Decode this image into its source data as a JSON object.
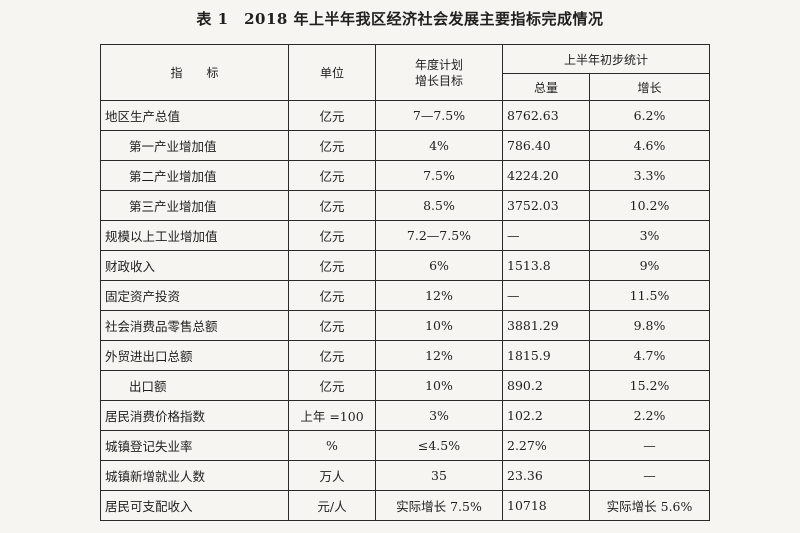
{
  "title": "表 1　2018 年上半年我区经济社会发展主要指标完成情况",
  "headers": {
    "indicator": "指　　标",
    "unit": "单位",
    "target_line1": "年度计划",
    "target_line2": "增长目标",
    "prelim": "上半年初步统计",
    "total": "总量",
    "growth": "增长"
  },
  "rows": [
    {
      "name": "地区生产总值",
      "unit": "亿元",
      "target": "7—7.5%",
      "total": "8762.63",
      "growth": "6.2%",
      "sub": false
    },
    {
      "name": "第一产业增加值",
      "unit": "亿元",
      "target": "4%",
      "total": "786.40",
      "growth": "4.6%",
      "sub": true
    },
    {
      "name": "第二产业增加值",
      "unit": "亿元",
      "target": "7.5%",
      "total": "4224.20",
      "growth": "3.3%",
      "sub": true
    },
    {
      "name": "第三产业增加值",
      "unit": "亿元",
      "target": "8.5%",
      "total": "3752.03",
      "growth": "10.2%",
      "sub": true
    },
    {
      "name": "规模以上工业增加值",
      "unit": "亿元",
      "target": "7.2—7.5%",
      "total": "—",
      "growth": "3%",
      "sub": false
    },
    {
      "name": "财政收入",
      "unit": "亿元",
      "target": "6%",
      "total": "1513.8",
      "growth": "9%",
      "sub": false
    },
    {
      "name": "固定资产投资",
      "unit": "亿元",
      "target": "12%",
      "total": "—",
      "growth": "11.5%",
      "sub": false
    },
    {
      "name": "社会消费品零售总额",
      "unit": "亿元",
      "target": "10%",
      "total": "3881.29",
      "growth": "9.8%",
      "sub": false
    },
    {
      "name": "外贸进出口总额",
      "unit": "亿元",
      "target": "12%",
      "total": "1815.9",
      "growth": "4.7%",
      "sub": false
    },
    {
      "name": "出口额",
      "unit": "亿元",
      "target": "10%",
      "total": "890.2",
      "growth": "15.2%",
      "sub": true
    },
    {
      "name": "居民消费价格指数",
      "unit": "上年 =100",
      "target": "3%",
      "total": "102.2",
      "growth": "2.2%",
      "sub": false
    },
    {
      "name": "城镇登记失业率",
      "unit": "%",
      "target": "≤4.5%",
      "total": "2.27%",
      "growth": "—",
      "sub": false
    },
    {
      "name": "城镇新增就业人数",
      "unit": "万人",
      "target": "35",
      "total": "23.36",
      "growth": "—",
      "sub": false
    },
    {
      "name": "居民可支配收入",
      "unit": "元/人",
      "target": "实际增长 7.5%",
      "total": "10718",
      "growth": "实际增长 5.6%",
      "sub": false
    }
  ]
}
